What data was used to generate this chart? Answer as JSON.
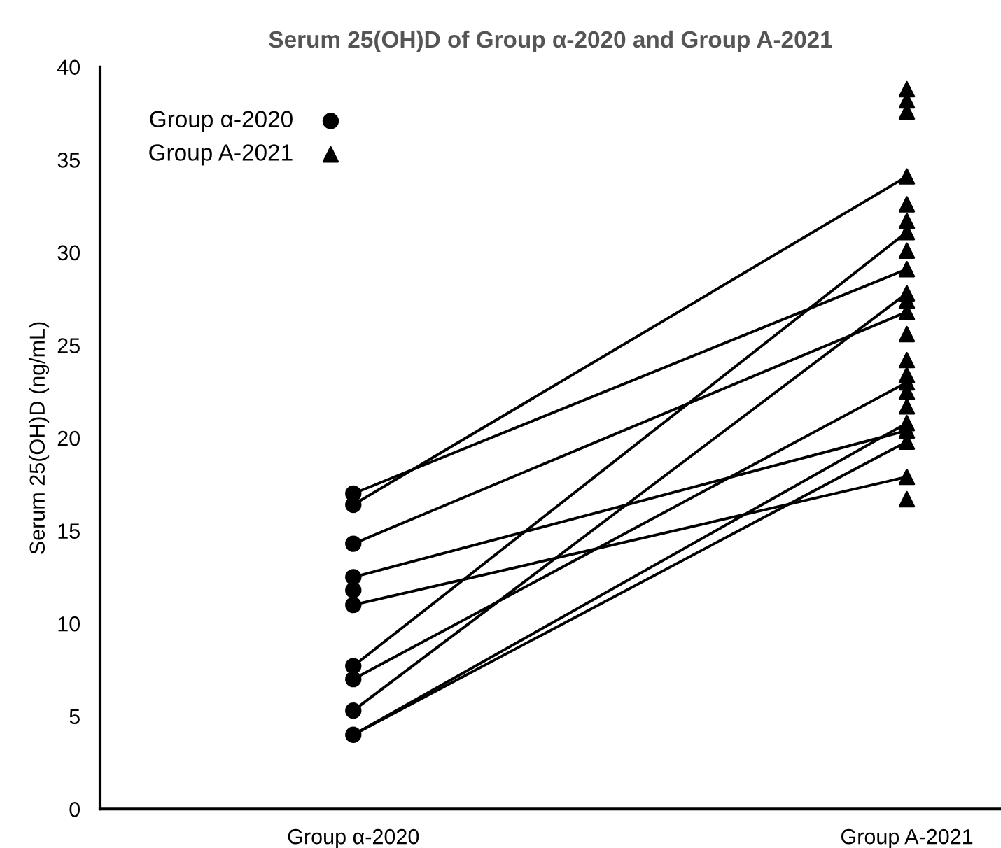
{
  "chart_data": {
    "type": "scatter",
    "title": "Serum 25(OH)D of Group α-2020 and Group A-2021",
    "ylabel": "Serum 25(OH)D (ng/mL)",
    "categories": [
      "Group α-2020",
      "Group A-2021"
    ],
    "ylim": [
      0,
      40
    ],
    "yticks": [
      0,
      5,
      10,
      15,
      20,
      25,
      30,
      35,
      40
    ],
    "grid": false,
    "legend": "top left",
    "series": [
      {
        "name": "Group α-2020",
        "marker": "circle",
        "color": "#000000",
        "x": [
          "Group α-2020",
          "Group α-2020",
          "Group α-2020",
          "Group α-2020",
          "Group α-2020",
          "Group α-2020",
          "Group α-2020",
          "Group α-2020",
          "Group α-2020",
          "Group α-2020"
        ],
        "values": [
          17.0,
          16.4,
          14.3,
          12.5,
          11.8,
          11.0,
          7.7,
          7.0,
          5.3,
          4.0
        ]
      },
      {
        "name": "Group A-2021",
        "marker": "triangle",
        "color": "#000000",
        "x": [
          "Group A-2021",
          "Group A-2021",
          "Group A-2021",
          "Group A-2021",
          "Group A-2021",
          "Group A-2021",
          "Group A-2021",
          "Group A-2021",
          "Group A-2021",
          "Group A-2021",
          "Group A-2021",
          "Group A-2021",
          "Group A-2021",
          "Group A-2021",
          "Group A-2021",
          "Group A-2021",
          "Group A-2021",
          "Group A-2021",
          "Group A-2021",
          "Group A-2021",
          "Group A-2021",
          "Group A-2021",
          "Group A-2021"
        ],
        "values": [
          38.8,
          38.2,
          37.6,
          34.1,
          32.6,
          31.7,
          31.1,
          30.1,
          29.1,
          27.8,
          27.4,
          26.8,
          25.6,
          24.2,
          23.4,
          23.0,
          22.5,
          21.7,
          20.8,
          20.4,
          19.8,
          17.9,
          16.7
        ]
      },
      {
        "type": "line",
        "color": "#000000",
        "values": [
          17.0,
          29.1
        ]
      },
      {
        "type": "line",
        "color": "#000000",
        "values": [
          16.4,
          34.1
        ]
      },
      {
        "type": "line",
        "color": "#000000",
        "values": [
          14.3,
          26.8
        ]
      },
      {
        "type": "line",
        "color": "#000000",
        "values": [
          12.5,
          20.4
        ]
      },
      {
        "type": "line",
        "color": "#000000",
        "values": [
          11.0,
          17.9
        ]
      },
      {
        "type": "line",
        "color": "#000000",
        "values": [
          7.7,
          31.1
        ]
      },
      {
        "type": "line",
        "color": "#000000",
        "values": [
          7.0,
          23.0
        ]
      },
      {
        "type": "line",
        "color": "#000000",
        "values": [
          5.3,
          27.8
        ]
      },
      {
        "type": "line",
        "color": "#000000",
        "values": [
          4.0,
          20.8
        ]
      },
      {
        "type": "line",
        "color": "#000000",
        "values": [
          4.0,
          19.8
        ]
      }
    ]
  }
}
